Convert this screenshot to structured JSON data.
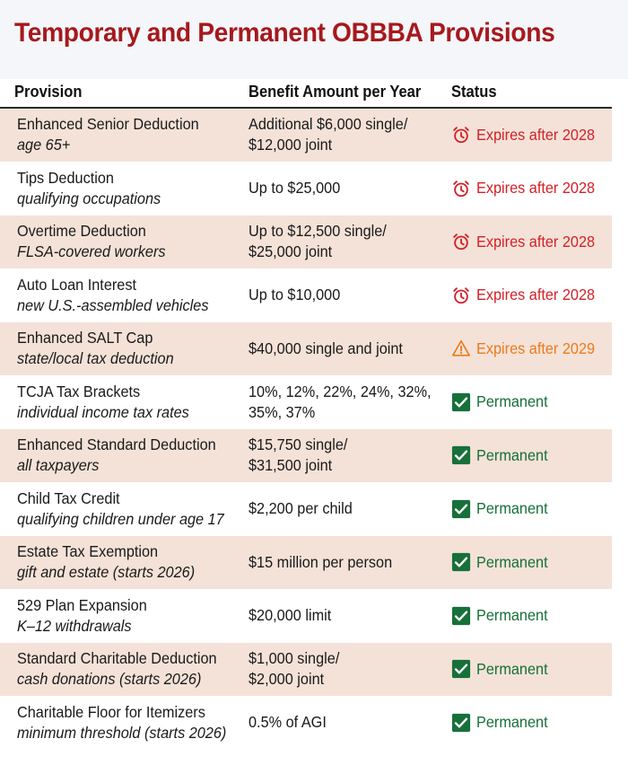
{
  "title": "Temporary and Permanent OBBBA Provisions",
  "columns": {
    "provision": "Provision",
    "benefit": "Benefit Amount per Year",
    "status": "Status"
  },
  "colors": {
    "title": "#a5191e",
    "row_shade": "#f4e2d8",
    "expires_red": "#d32027",
    "expires_orange": "#ec7a1c",
    "permanent_green": "#17703a"
  },
  "rows": [
    {
      "provision": "Enhanced Senior Deduction",
      "detail": "age 65+",
      "benefit": "Additional $6,000 single/\n$12,000 joint",
      "status": "Expires after 2028",
      "status_icon": "alarm-clock-icon",
      "status_kind": "expires-2028"
    },
    {
      "provision": "Tips Deduction",
      "detail": "qualifying occupations",
      "benefit": "Up to $25,000",
      "status": "Expires after 2028",
      "status_icon": "alarm-clock-icon",
      "status_kind": "expires-2028"
    },
    {
      "provision": "Overtime Deduction",
      "detail": "FLSA-covered workers",
      "benefit": "Up to $12,500 single/\n$25,000 joint",
      "status": "Expires after 2028",
      "status_icon": "alarm-clock-icon",
      "status_kind": "expires-2028"
    },
    {
      "provision": "Auto Loan Interest",
      "detail": "new U.S.-assembled vehicles",
      "benefit": "Up to $10,000",
      "status": "Expires after 2028",
      "status_icon": "alarm-clock-icon",
      "status_kind": "expires-2028"
    },
    {
      "provision": "Enhanced SALT Cap",
      "detail": "state/local tax deduction",
      "benefit": "$40,000 single and joint",
      "status": "Expires after 2029",
      "status_icon": "warning-triangle-icon",
      "status_kind": "expires-2029"
    },
    {
      "provision": "TCJA Tax Brackets",
      "detail": "individual income tax rates",
      "benefit": "10%, 12%, 22%, 24%, 32%,\n35%, 37%",
      "status": "Permanent",
      "status_icon": "check-box-icon",
      "status_kind": "permanent"
    },
    {
      "provision": "Enhanced Standard Deduction",
      "detail": "all taxpayers",
      "benefit": "$15,750 single/\n$31,500 joint",
      "status": "Permanent",
      "status_icon": "check-box-icon",
      "status_kind": "permanent"
    },
    {
      "provision": "Child Tax Credit",
      "detail": "qualifying children under age 17",
      "benefit": "$2,200 per child",
      "status": "Permanent",
      "status_icon": "check-box-icon",
      "status_kind": "permanent"
    },
    {
      "provision": "Estate Tax Exemption",
      "detail": "gift and estate (starts 2026)",
      "benefit": "$15 million per person",
      "status": "Permanent",
      "status_icon": "check-box-icon",
      "status_kind": "permanent"
    },
    {
      "provision": "529 Plan Expansion",
      "detail": "K–12 withdrawals",
      "benefit": "$20,000 limit",
      "status": "Permanent",
      "status_icon": "check-box-icon",
      "status_kind": "permanent"
    },
    {
      "provision": "Standard Charitable Deduction",
      "detail": "cash donations (starts 2026)",
      "benefit": "$1,000 single/\n$2,000 joint",
      "status": "Permanent",
      "status_icon": "check-box-icon",
      "status_kind": "permanent"
    },
    {
      "provision": "Charitable Floor for Itemizers",
      "detail": "minimum threshold (starts 2026)",
      "benefit": "0.5% of AGI",
      "status": "Permanent",
      "status_icon": "check-box-icon",
      "status_kind": "permanent"
    }
  ]
}
